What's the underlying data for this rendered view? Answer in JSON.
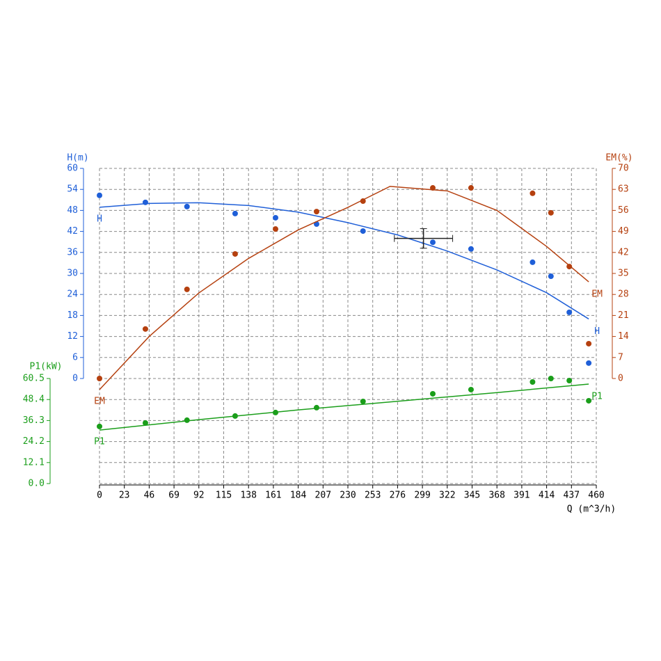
{
  "chart_data": {
    "type": "line",
    "xlabel": "Q (m^3/h)",
    "xlim": [
      0,
      460
    ],
    "xticks": [
      0,
      23,
      46,
      69,
      92,
      115,
      138,
      161,
      184,
      207,
      230,
      253,
      276,
      299,
      322,
      345,
      368,
      391,
      414,
      437,
      460
    ],
    "ylabel": "H(m)",
    "ylim": [
      0,
      60
    ],
    "yticks": [
      0,
      6,
      12,
      18,
      24,
      30,
      36,
      42,
      48,
      54,
      60
    ],
    "y2label": "EM(%)",
    "y2lim": [
      0,
      70
    ],
    "y2ticks": [
      0,
      7,
      14,
      21,
      28,
      35,
      42,
      49,
      56,
      63,
      70
    ],
    "y3label": "P1(kW)",
    "y3lim": [
      0,
      60.5
    ],
    "y3ticks": [
      {
        "value": 0,
        "label": "0.0"
      },
      12.1,
      24.2,
      36.3,
      48.4,
      60.5
    ],
    "grid": true,
    "series": [
      {
        "name": "H",
        "color": "#1f5fd8",
        "axis": "y",
        "points": {
          "x": [
            0,
            42.5,
            81,
            125.6,
            163,
            201,
            244,
            308.6,
            344,
            401,
            418,
            435,
            453
          ],
          "values": [
            52.3,
            50.3,
            49.1,
            47.1,
            45.9,
            44.1,
            42.1,
            38.9,
            37,
            33.2,
            29.2,
            18.9,
            4.4
          ]
        },
        "curve": {
          "x": [
            0,
            46,
            92,
            138,
            184,
            230,
            276,
            322,
            368,
            414,
            453
          ],
          "values": [
            48.9,
            50,
            50.2,
            49.4,
            47.5,
            44.5,
            41,
            36.4,
            31,
            24.5,
            17
          ]
        }
      },
      {
        "name": "EM",
        "color": "#b5400f",
        "axis": "y2",
        "points": {
          "x": [
            0,
            42.5,
            81,
            125.6,
            163,
            201,
            244,
            308.6,
            344,
            401,
            418,
            435,
            453
          ],
          "values": [
            0,
            16.5,
            29.7,
            41.5,
            49.8,
            55.6,
            59.1,
            63.5,
            63.5,
            61.7,
            55.2,
            37.3,
            11.6
          ]
        },
        "curve": {
          "x": [
            0,
            46,
            92,
            138,
            184,
            230,
            269,
            322,
            368,
            414,
            453
          ],
          "values": [
            -3.7,
            14,
            28.5,
            40,
            49.5,
            57,
            64,
            62.5,
            56,
            44,
            32.2
          ]
        }
      },
      {
        "name": "P1",
        "color": "#1a9e1a",
        "axis": "y3",
        "points": {
          "x": [
            0,
            42.5,
            81,
            125.6,
            163,
            201,
            244,
            308.6,
            344,
            401,
            418,
            435,
            453
          ],
          "values": [
            32.9,
            34.9,
            36.5,
            38.9,
            40.9,
            43.7,
            47.3,
            51.7,
            54.1,
            58.5,
            60.5,
            59.3,
            47.7
          ]
        },
        "curve": {
          "x": [
            0,
            92,
            184,
            276,
            368,
            453
          ],
          "values": [
            30.8,
            36.8,
            42.4,
            47.4,
            52.4,
            57.3
          ]
        }
      }
    ],
    "operating_point": {
      "x": 300,
      "value": 40,
      "x_error": 27,
      "value_error": 2.8
    }
  }
}
